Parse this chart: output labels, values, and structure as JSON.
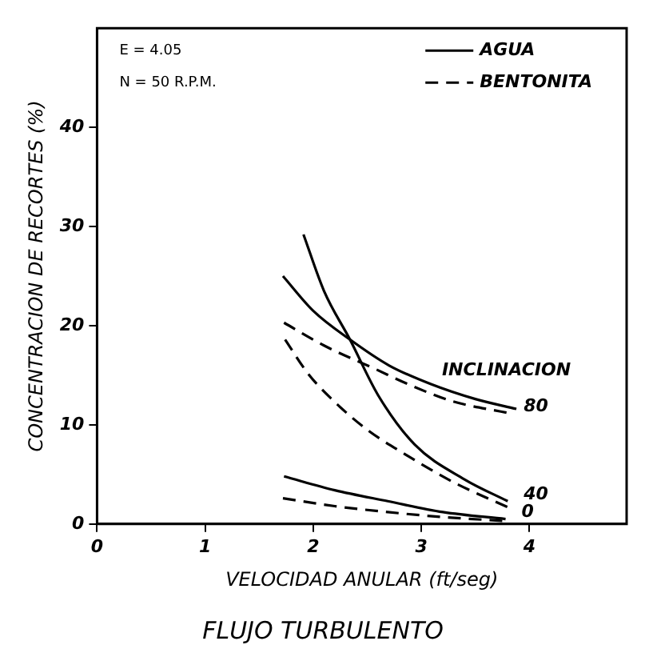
{
  "chart_data": {
    "type": "line",
    "title": "FLUJO TURBULENTO",
    "xlabel": "VELOCIDAD ANULAR (ft/seg)",
    "ylabel": "CONCENTRACION DE RECORTES (%)",
    "xlim": [
      0,
      4.9
    ],
    "xticks": [
      0,
      1,
      2,
      3,
      4
    ],
    "ylim": [
      0,
      50
    ],
    "yticks": [
      0,
      10,
      20,
      30,
      40
    ],
    "grid": false,
    "legend": "top right",
    "marker": "none",
    "series": [
      {
        "name": "AGUA",
        "color": "#000000",
        "line_style": "solid",
        "x": [
          1.72,
          2.0,
          2.34,
          2.7,
          3.09,
          3.5,
          3.88
        ],
        "values": [
          25,
          21.5,
          18.6,
          16,
          14.1,
          12.6,
          11.6
        ]
      },
      {
        "name": "BENTONITA",
        "color": "#000000",
        "line_style": "dashed",
        "x": [
          1.73,
          2.1,
          2.58,
          2.9,
          3.28,
          3.8
        ],
        "values": [
          20.3,
          18,
          15.6,
          14,
          12.4,
          11.2
        ]
      },
      {
        "color": "#000000",
        "line_style": "solid",
        "x": [
          1.91,
          2.1,
          2.34,
          2.6,
          2.94,
          3.4,
          3.8
        ],
        "values": [
          29.2,
          23.5,
          18.6,
          13,
          8.0,
          4.5,
          2.3
        ]
      },
      {
        "color": "#000000",
        "line_style": "dashed",
        "x": [
          1.74,
          1.95,
          2.19,
          2.5,
          2.84,
          3.3,
          3.8
        ],
        "values": [
          18.6,
          15.2,
          12.4,
          9.5,
          7.1,
          4.2,
          1.7
        ]
      },
      {
        "color": "#000000",
        "line_style": "solid",
        "x": [
          1.73,
          2.2,
          2.69,
          3.2,
          3.78
        ],
        "values": [
          4.8,
          3.4,
          2.3,
          1.2,
          0.5
        ]
      },
      {
        "color": "#000000",
        "line_style": "dashed",
        "x": [
          1.72,
          2.2,
          2.69,
          3.2,
          3.78
        ],
        "values": [
          2.6,
          1.8,
          1.2,
          0.7,
          0.3
        ]
      }
    ],
    "annotations": [
      "E = 4.05",
      "N = 50 R.P.M.",
      {
        "text": "80",
        "x": 3.8,
        "y": 11.2
      },
      {
        "text": "INCLINACION",
        "x": 3.88,
        "y": 11.6
      },
      {
        "text": "40",
        "x": 3.8,
        "y": 2.3
      },
      {
        "text": "0",
        "x": 3.78,
        "y": 0.5
      }
    ]
  }
}
